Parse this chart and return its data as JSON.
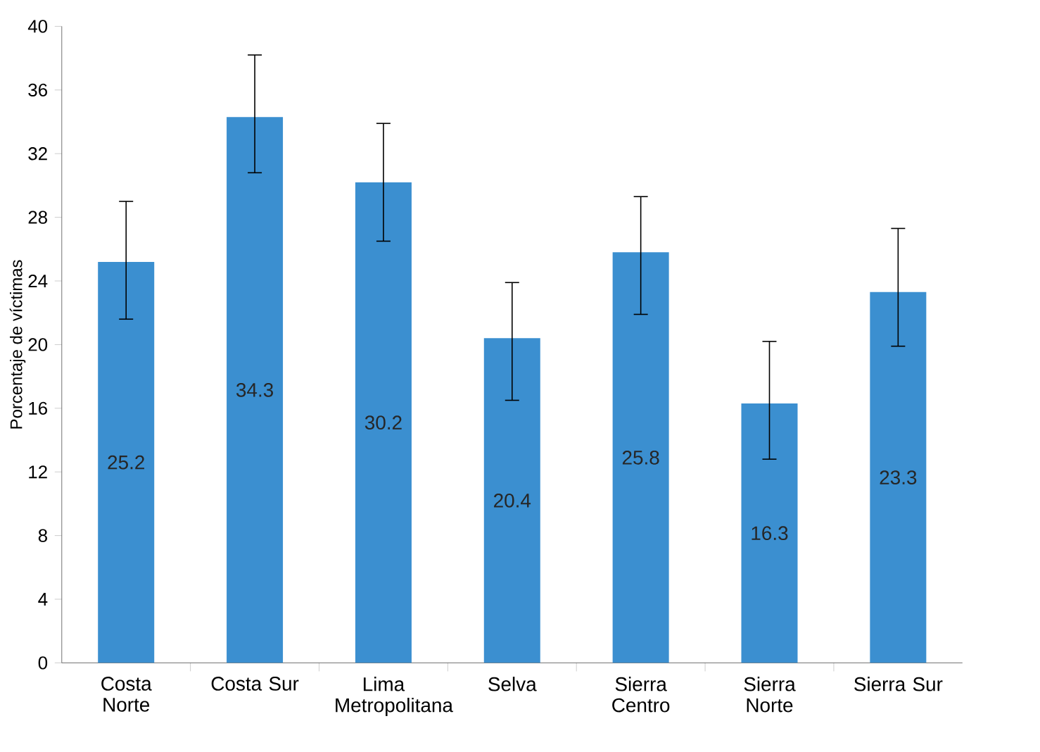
{
  "chart_data": {
    "type": "bar",
    "ylabel": "Porcentaje de víctimas",
    "categories": [
      "Costa Norte",
      "Costa Sur",
      "Lima Metropolitana",
      "Selva",
      "Sierra Centro",
      "Sierra Norte",
      "Sierra Sur"
    ],
    "values": [
      25.2,
      34.3,
      30.2,
      20.4,
      25.8,
      16.3,
      23.3
    ],
    "errors": [
      [
        21.6,
        29.0
      ],
      [
        30.8,
        38.2
      ],
      [
        26.5,
        33.9
      ],
      [
        16.5,
        23.9
      ],
      [
        21.9,
        29.3
      ],
      [
        12.8,
        20.2
      ],
      [
        19.9,
        27.3
      ]
    ],
    "color": "#3b8fd0",
    "ylim": [
      0,
      40
    ],
    "yticks": [
      0,
      4,
      8,
      12,
      16,
      20,
      24,
      28,
      32,
      36,
      40
    ],
    "data_labels": true
  }
}
